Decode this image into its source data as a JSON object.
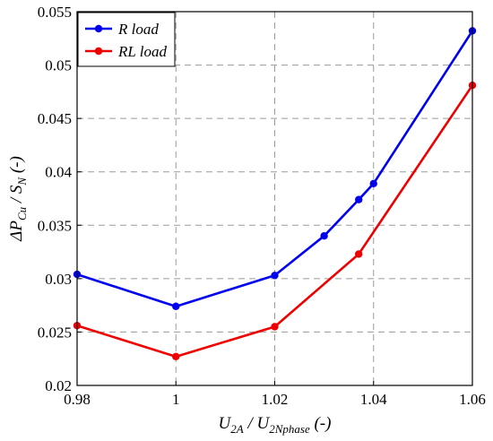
{
  "chart_data": {
    "type": "line",
    "xlim": [
      0.98,
      1.06
    ],
    "ylim": [
      0.02,
      0.055
    ],
    "x_ticks": [
      "0.98",
      "1",
      "1.02",
      "1.04",
      "1.06"
    ],
    "x_tick_values": [
      0.98,
      1.0,
      1.02,
      1.04,
      1.06
    ],
    "y_ticks": [
      "0.02",
      "0.025",
      "0.03",
      "0.035",
      "0.04",
      "0.045",
      "0.05",
      "0.055"
    ],
    "y_tick_values": [
      0.02,
      0.025,
      0.03,
      0.035,
      0.04,
      0.045,
      0.05,
      0.055
    ],
    "grid": true,
    "legend_position": "top-left",
    "xlabel": {
      "main": "U",
      "main_sub": "2A",
      "sep": " / ",
      "denom": "U",
      "denom_sub": "2Nphase",
      "unit": " (-)"
    },
    "ylabel": {
      "main": "ΔP",
      "main_sub": "Cu",
      "sep": " / ",
      "denom": "S",
      "denom_sub": "N",
      "unit": " (-)"
    },
    "series": [
      {
        "name": "R load",
        "color": "#0000ee",
        "x": [
          0.98,
          1.0,
          1.02,
          1.03,
          1.037,
          1.04,
          1.06
        ],
        "y": [
          0.0304,
          0.0274,
          0.0303,
          0.034,
          0.0374,
          0.0389,
          0.0532
        ]
      },
      {
        "name": "RL load",
        "color": "#ee0000",
        "x": [
          0.98,
          1.0,
          1.02,
          1.037,
          1.06
        ],
        "y": [
          0.0256,
          0.0227,
          0.0255,
          0.0323,
          0.0481
        ]
      }
    ]
  }
}
